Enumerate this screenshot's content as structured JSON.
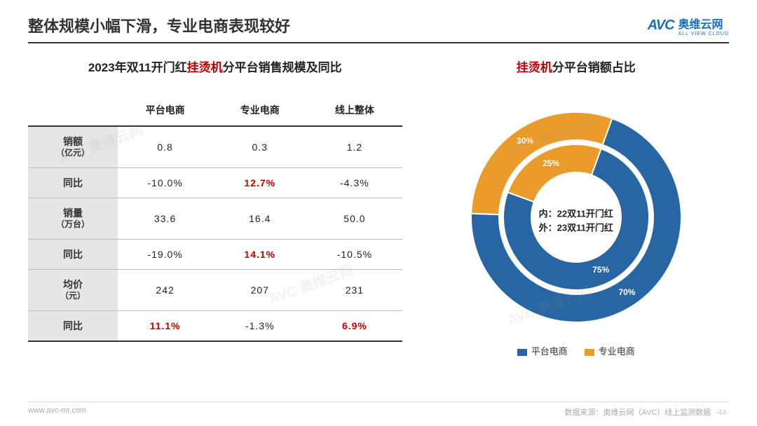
{
  "header": {
    "title": "整体规模小幅下滑，专业电商表现较好",
    "logo_mark": "AVC",
    "logo_cn": "奥维云网",
    "logo_en": "ALL VIEW CLOUD"
  },
  "table": {
    "title_prefix": "2023年双11开门红",
    "title_highlight": "挂烫机",
    "title_suffix": "分平台销售规模及同比",
    "columns": [
      "",
      "平台电商",
      "专业电商",
      "线上整体"
    ],
    "rows": [
      {
        "label": "销额",
        "unit": "（亿元）",
        "cells": [
          {
            "v": "0.8",
            "red": false
          },
          {
            "v": "0.3",
            "red": false
          },
          {
            "v": "1.2",
            "red": false
          }
        ]
      },
      {
        "label": "同比",
        "unit": "",
        "cells": [
          {
            "v": "-10.0%",
            "red": false
          },
          {
            "v": "12.7%",
            "red": true
          },
          {
            "v": "-4.3%",
            "red": false
          }
        ]
      },
      {
        "label": "销量",
        "unit": "（万台）",
        "cells": [
          {
            "v": "33.6",
            "red": false
          },
          {
            "v": "16.4",
            "red": false
          },
          {
            "v": "50.0",
            "red": false
          }
        ]
      },
      {
        "label": "同比",
        "unit": "",
        "cells": [
          {
            "v": "-19.0%",
            "red": false
          },
          {
            "v": "14.1%",
            "red": true
          },
          {
            "v": "-10.5%",
            "red": false
          }
        ]
      },
      {
        "label": "均价",
        "unit": "（元）",
        "cells": [
          {
            "v": "242",
            "red": false
          },
          {
            "v": "207",
            "red": false
          },
          {
            "v": "231",
            "red": false
          }
        ]
      },
      {
        "label": "同比",
        "unit": "",
        "cells": [
          {
            "v": "11.1%",
            "red": true
          },
          {
            "v": "-1.3%",
            "red": false
          },
          {
            "v": "6.9%",
            "red": true
          }
        ]
      }
    ]
  },
  "donut": {
    "title_highlight": "挂烫机",
    "title_suffix": "分平台销额占比",
    "center_line1": "内：22双11开门红",
    "center_line2": "外：23双11开门红",
    "colors": {
      "platform": "#2766a2",
      "pro": "#eb9b2a",
      "bg": "#ffffff",
      "gap": "#ffffff"
    },
    "outer": {
      "r_out": 150,
      "r_in": 110,
      "slices": [
        {
          "name": "平台电商",
          "value": 70,
          "color": "#2766a2",
          "label": "70%"
        },
        {
          "name": "专业电商",
          "value": 30,
          "color": "#eb9b2a",
          "label": "30%"
        }
      ]
    },
    "inner": {
      "r_out": 104,
      "r_in": 64,
      "slices": [
        {
          "name": "平台电商",
          "value": 75,
          "color": "#2766a2",
          "label": "75%"
        },
        {
          "name": "专业电商",
          "value": 25,
          "color": "#eb9b2a",
          "label": "25%"
        }
      ]
    },
    "legend": [
      {
        "name": "平台电商",
        "color": "#2766a2"
      },
      {
        "name": "专业电商",
        "color": "#eb9b2a"
      }
    ],
    "start_angle_deg": -70
  },
  "footer": {
    "url": "www.avc-mr.com",
    "source": "数据来源：奥维云网（AVC）线上监测数据",
    "page": "-44-"
  },
  "watermark": "AVC 奥维云网"
}
